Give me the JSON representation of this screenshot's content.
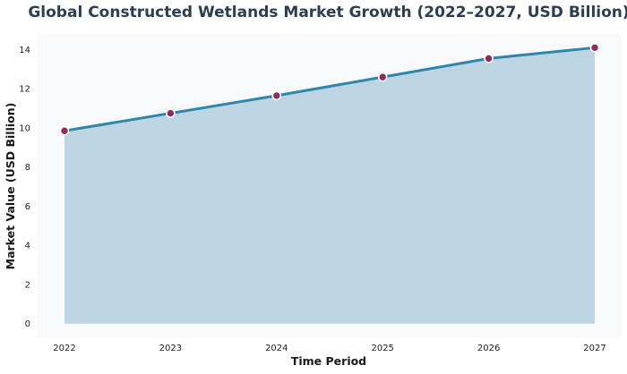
{
  "chart_data": {
    "type": "area",
    "title": "Global Constructed Wetlands Market Growth (2022–2027, USD Billion)",
    "xlabel": "Time Period",
    "ylabel": "Market Value (USD Billion)",
    "x": [
      "2022",
      "2023",
      "2024",
      "2025",
      "2026",
      "2027"
    ],
    "series": [
      {
        "values": [
          9.85,
          10.75,
          11.65,
          12.6,
          13.55,
          14.1
        ]
      }
    ],
    "ylim": [
      -0.7,
      14.8
    ],
    "yticks": [
      0,
      2,
      4,
      6,
      8,
      10,
      12,
      14
    ],
    "grid": false,
    "legend": "none",
    "colors": {
      "plot_background": "#f7f9fb",
      "area_fill": "#bdd5e2",
      "line": "#2e86ab",
      "marker_fill": "#8e2c5a",
      "marker_edge": "#ffffff",
      "title": "#2c3e50"
    }
  }
}
